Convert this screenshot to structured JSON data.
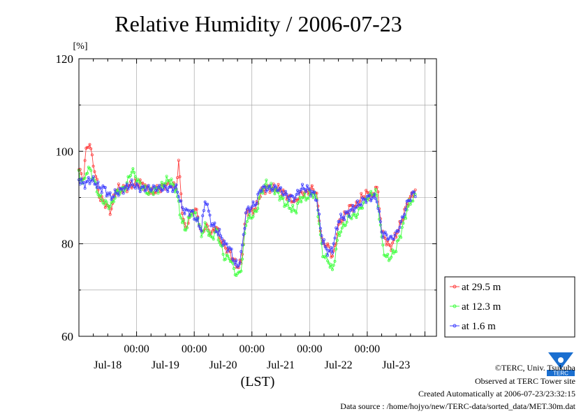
{
  "chart_data": {
    "type": "line",
    "title": "Relative Humidity / 2006-07-23",
    "ylabel": "[%]",
    "xlabel": "(LST)",
    "ylim": [
      60,
      120
    ],
    "y_ticks": [
      "60",
      "80",
      "100",
      "120"
    ],
    "x_domain_days": [
      0.0,
      6.2
    ],
    "x_time_ticks": [
      "00:00",
      "00:00",
      "00:00",
      "00:00",
      "00:00"
    ],
    "x_date_labels": [
      "Jul-18",
      "Jul-19",
      "Jul-20",
      "Jul-21",
      "Jul-22",
      "Jul-23"
    ],
    "grid": true,
    "legend_position": "right",
    "series": [
      {
        "name": "at 29.5 m",
        "color": "#ff4040",
        "keypoints": [
          [
            0.0,
            96
          ],
          [
            0.08,
            94
          ],
          [
            0.12,
            100
          ],
          [
            0.18,
            102
          ],
          [
            0.24,
            98
          ],
          [
            0.3,
            94
          ],
          [
            0.36,
            90
          ],
          [
            0.44,
            89
          ],
          [
            0.55,
            87
          ],
          [
            0.65,
            92
          ],
          [
            0.8,
            92
          ],
          [
            0.95,
            93
          ],
          [
            1.1,
            93
          ],
          [
            1.25,
            91
          ],
          [
            1.4,
            92
          ],
          [
            1.55,
            93
          ],
          [
            1.7,
            92
          ],
          [
            1.72,
            99
          ],
          [
            1.8,
            86
          ],
          [
            1.85,
            83
          ],
          [
            1.95,
            87
          ],
          [
            2.05,
            87
          ],
          [
            2.12,
            82
          ],
          [
            2.2,
            84
          ],
          [
            2.3,
            82
          ],
          [
            2.38,
            84
          ],
          [
            2.45,
            81
          ],
          [
            2.55,
            79
          ],
          [
            2.62,
            78
          ],
          [
            2.7,
            76
          ],
          [
            2.76,
            75
          ],
          [
            2.82,
            76
          ],
          [
            2.9,
            87
          ],
          [
            3.0,
            87
          ],
          [
            3.08,
            88
          ],
          [
            3.15,
            91
          ],
          [
            3.25,
            92
          ],
          [
            3.35,
            92
          ],
          [
            3.45,
            92
          ],
          [
            3.55,
            91
          ],
          [
            3.65,
            90
          ],
          [
            3.75,
            89
          ],
          [
            3.85,
            91
          ],
          [
            3.95,
            91
          ],
          [
            4.05,
            92
          ],
          [
            4.12,
            91
          ],
          [
            4.16,
            86
          ],
          [
            4.22,
            80
          ],
          [
            4.28,
            80
          ],
          [
            4.34,
            79
          ],
          [
            4.4,
            77
          ],
          [
            4.45,
            80
          ],
          [
            4.5,
            84
          ],
          [
            4.6,
            86
          ],
          [
            4.7,
            88
          ],
          [
            4.8,
            88
          ],
          [
            4.9,
            90
          ],
          [
            5.0,
            91
          ],
          [
            5.1,
            90
          ],
          [
            5.16,
            93
          ],
          [
            5.2,
            89
          ],
          [
            5.26,
            82
          ],
          [
            5.32,
            81
          ],
          [
            5.4,
            79
          ],
          [
            5.5,
            82
          ],
          [
            5.6,
            85
          ],
          [
            5.7,
            89
          ],
          [
            5.8,
            91
          ],
          [
            5.85,
            92
          ]
        ]
      },
      {
        "name": "at 12.3 m",
        "color": "#40ff40",
        "keypoints": [
          [
            0.0,
            95
          ],
          [
            0.08,
            93
          ],
          [
            0.14,
            96
          ],
          [
            0.2,
            96
          ],
          [
            0.28,
            93
          ],
          [
            0.36,
            90
          ],
          [
            0.44,
            89
          ],
          [
            0.55,
            88
          ],
          [
            0.65,
            91
          ],
          [
            0.8,
            92
          ],
          [
            0.92,
            96
          ],
          [
            1.05,
            93
          ],
          [
            1.2,
            91
          ],
          [
            1.4,
            92
          ],
          [
            1.55,
            94
          ],
          [
            1.68,
            92
          ],
          [
            1.78,
            85
          ],
          [
            1.85,
            83
          ],
          [
            1.95,
            87
          ],
          [
            2.05,
            86
          ],
          [
            2.12,
            82
          ],
          [
            2.2,
            84
          ],
          [
            2.3,
            81
          ],
          [
            2.38,
            83
          ],
          [
            2.45,
            80
          ],
          [
            2.52,
            77
          ],
          [
            2.62,
            77
          ],
          [
            2.7,
            74
          ],
          [
            2.76,
            73
          ],
          [
            2.82,
            75
          ],
          [
            2.9,
            85
          ],
          [
            3.0,
            86
          ],
          [
            3.08,
            87
          ],
          [
            3.15,
            91
          ],
          [
            3.25,
            93
          ],
          [
            3.35,
            92
          ],
          [
            3.45,
            91
          ],
          [
            3.55,
            89
          ],
          [
            3.65,
            88
          ],
          [
            3.75,
            87
          ],
          [
            3.85,
            90
          ],
          [
            3.95,
            90
          ],
          [
            4.05,
            91
          ],
          [
            4.12,
            90
          ],
          [
            4.16,
            85
          ],
          [
            4.22,
            78
          ],
          [
            4.28,
            77
          ],
          [
            4.34,
            76
          ],
          [
            4.4,
            74
          ],
          [
            4.45,
            78
          ],
          [
            4.5,
            82
          ],
          [
            4.6,
            84
          ],
          [
            4.7,
            86
          ],
          [
            4.8,
            86
          ],
          [
            4.9,
            88
          ],
          [
            5.0,
            90
          ],
          [
            5.1,
            91
          ],
          [
            5.16,
            91
          ],
          [
            5.2,
            87
          ],
          [
            5.26,
            80
          ],
          [
            5.32,
            77
          ],
          [
            5.4,
            77
          ],
          [
            5.5,
            79
          ],
          [
            5.6,
            83
          ],
          [
            5.7,
            88
          ],
          [
            5.8,
            90
          ],
          [
            5.85,
            91
          ]
        ]
      },
      {
        "name": "at 1.6 m",
        "color": "#4040ff",
        "keypoints": [
          [
            0.0,
            94
          ],
          [
            0.06,
            93
          ],
          [
            0.12,
            93
          ],
          [
            0.2,
            94
          ],
          [
            0.3,
            93
          ],
          [
            0.36,
            92
          ],
          [
            0.44,
            92
          ],
          [
            0.55,
            90
          ],
          [
            0.65,
            91
          ],
          [
            0.8,
            92
          ],
          [
            0.92,
            93
          ],
          [
            1.05,
            92
          ],
          [
            1.2,
            92
          ],
          [
            1.4,
            92
          ],
          [
            1.55,
            92
          ],
          [
            1.7,
            92
          ],
          [
            1.78,
            88
          ],
          [
            1.85,
            87
          ],
          [
            1.95,
            87
          ],
          [
            2.05,
            85
          ],
          [
            2.12,
            83
          ],
          [
            2.2,
            90
          ],
          [
            2.28,
            85
          ],
          [
            2.38,
            83
          ],
          [
            2.45,
            82
          ],
          [
            2.52,
            80
          ],
          [
            2.62,
            79
          ],
          [
            2.7,
            76
          ],
          [
            2.76,
            75
          ],
          [
            2.82,
            78
          ],
          [
            2.9,
            87
          ],
          [
            3.0,
            88
          ],
          [
            3.08,
            89
          ],
          [
            3.15,
            92
          ],
          [
            3.25,
            92
          ],
          [
            3.35,
            92
          ],
          [
            3.45,
            92
          ],
          [
            3.55,
            91
          ],
          [
            3.65,
            90
          ],
          [
            3.75,
            90
          ],
          [
            3.85,
            92
          ],
          [
            3.95,
            92
          ],
          [
            4.05,
            91
          ],
          [
            4.12,
            90
          ],
          [
            4.16,
            86
          ],
          [
            4.22,
            81
          ],
          [
            4.28,
            79
          ],
          [
            4.34,
            78
          ],
          [
            4.4,
            79
          ],
          [
            4.45,
            82
          ],
          [
            4.5,
            85
          ],
          [
            4.6,
            86
          ],
          [
            4.7,
            87
          ],
          [
            4.8,
            88
          ],
          [
            4.9,
            89
          ],
          [
            5.0,
            90
          ],
          [
            5.1,
            90
          ],
          [
            5.16,
            90
          ],
          [
            5.2,
            87
          ],
          [
            5.26,
            82
          ],
          [
            5.32,
            82
          ],
          [
            5.4,
            81
          ],
          [
            5.5,
            82
          ],
          [
            5.6,
            85
          ],
          [
            5.7,
            89
          ],
          [
            5.8,
            91
          ],
          [
            5.85,
            91
          ]
        ]
      }
    ]
  },
  "footer": {
    "copyright": "©TERC, Univ. Tsukuba",
    "observed": "Observed at TERC Tower site",
    "created": "Created Automatically at 2006-07-23/23:32:15",
    "source": "Data source : /home/hojyo/new/TERC-data/sorted_data/MET.30m.dat"
  },
  "logo": {
    "icon": "terc-logo-icon",
    "text": "TERC",
    "color": "#1a6fd0"
  }
}
